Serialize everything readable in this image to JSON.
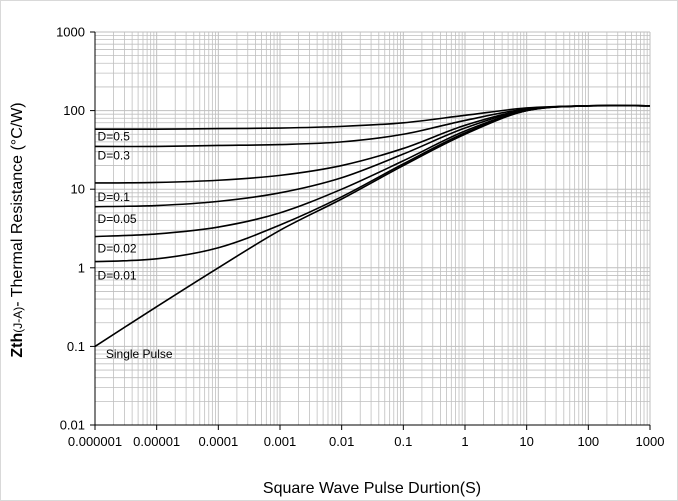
{
  "chart_data": {
    "type": "line",
    "title": "",
    "xlabel": "Square Wave Pulse Durtion(S)",
    "ylabel": {
      "bold": "Zth",
      "sub": "(J-A)",
      "rest": "- Thermal Resistance (°C/W)"
    },
    "x_scale": "log",
    "y_scale": "log",
    "xlim": [
      1e-06,
      1000
    ],
    "ylim": [
      0.01,
      1000
    ],
    "grid": true,
    "x_tick_values": [
      1e-06,
      1e-05,
      0.0001,
      0.001,
      0.01,
      0.1,
      1,
      10,
      100,
      1000
    ],
    "x_tick_labels": [
      "0.000001",
      "0.00001",
      "0.0001",
      "0.001",
      "0.01",
      "0.1",
      "1",
      "10",
      "100",
      "1000"
    ],
    "y_tick_values": [
      0.01,
      0.1,
      1,
      10,
      100,
      1000
    ],
    "y_tick_labels": [
      "0.01",
      "0.1",
      "1",
      "10",
      "100",
      "1000"
    ],
    "series": [
      {
        "name": "D=0.5",
        "x": [
          1e-06,
          1e-05,
          0.0001,
          0.001,
          0.01,
          0.1,
          1,
          10,
          100,
          1000
        ],
        "y": [
          58,
          58,
          59,
          60,
          63,
          70,
          87,
          108,
          115,
          115
        ]
      },
      {
        "name": "D=0.3",
        "x": [
          1e-06,
          1e-05,
          0.0001,
          0.001,
          0.01,
          0.1,
          1,
          10,
          100,
          1000
        ],
        "y": [
          35,
          35,
          36,
          37,
          40,
          50,
          75,
          105,
          115,
          115
        ]
      },
      {
        "name": "D=0.1",
        "x": [
          1e-06,
          1e-05,
          0.0001,
          0.001,
          0.01,
          0.1,
          1,
          10,
          100,
          1000
        ],
        "y": [
          12,
          12.2,
          13,
          15,
          20,
          33,
          65,
          103,
          115,
          115
        ]
      },
      {
        "name": "D=0.05",
        "x": [
          1e-06,
          1e-05,
          0.0001,
          0.001,
          0.01,
          0.1,
          1,
          10,
          100,
          1000
        ],
        "y": [
          6,
          6.2,
          7,
          9,
          14,
          28,
          60,
          102,
          115,
          115
        ]
      },
      {
        "name": "D=0.02",
        "x": [
          1e-06,
          1e-05,
          0.0001,
          0.001,
          0.01,
          0.1,
          1,
          10,
          100,
          1000
        ],
        "y": [
          2.5,
          2.7,
          3.3,
          5,
          10,
          23,
          55,
          100,
          115,
          115
        ]
      },
      {
        "name": "D=0.01",
        "x": [
          1e-06,
          1e-05,
          0.0001,
          0.001,
          0.01,
          0.1,
          1,
          10,
          100,
          1000
        ],
        "y": [
          1.2,
          1.3,
          1.8,
          3.5,
          8,
          21,
          52,
          100,
          115,
          115
        ]
      },
      {
        "name": "Single Pulse",
        "x": [
          1e-06,
          1e-05,
          0.0001,
          0.001,
          0.01,
          0.1,
          1,
          10,
          100,
          1000
        ],
        "y": [
          0.1,
          0.32,
          1.0,
          3.0,
          7.5,
          20,
          50,
          100,
          115,
          115
        ]
      }
    ],
    "annotations": [
      {
        "text": "D=0.5",
        "x": 1.1e-06,
        "y": 47
      },
      {
        "text": "D=0.3",
        "x": 1.1e-06,
        "y": 27
      },
      {
        "text": "D=0.1",
        "x": 1.1e-06,
        "y": 8
      },
      {
        "text": "D=0.05",
        "x": 1.1e-06,
        "y": 4.2
      },
      {
        "text": "D=0.02",
        "x": 1.1e-06,
        "y": 1.75
      },
      {
        "text": "D=0.01",
        "x": 1.1e-06,
        "y": 0.8
      },
      {
        "text": "Single Pulse",
        "x": 1.5e-06,
        "y": 0.08
      }
    ],
    "colors": {
      "line": "#000000",
      "grid": "#bfbfbf",
      "frame": "#d9d9d9"
    }
  }
}
